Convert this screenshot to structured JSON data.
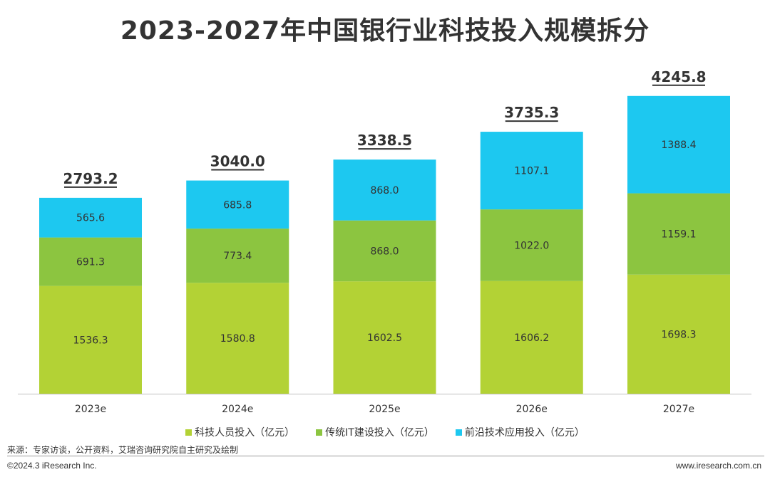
{
  "chart_data": {
    "type": "bar",
    "stacked": true,
    "title": "2023-2027年中国银行业科技投入规模拆分",
    "categories": [
      "2023e",
      "2024e",
      "2025e",
      "2026e",
      "2027e"
    ],
    "series": [
      {
        "name": "科技人员投入（亿元）",
        "color": "#b3d235",
        "values": [
          1536.3,
          1580.8,
          1602.5,
          1606.2,
          1698.3
        ]
      },
      {
        "name": "传统IT建设投入（亿元）",
        "color": "#8cc540",
        "values": [
          691.3,
          773.4,
          868.0,
          1022.0,
          1159.1
        ]
      },
      {
        "name": "前沿技术应用投入（亿元）",
        "color": "#1dc8f0",
        "values": [
          565.6,
          685.8,
          868.0,
          1107.1,
          1388.4
        ]
      }
    ],
    "totals": [
      "2793.2",
      "3040.0",
      "3338.5",
      "3735.3",
      "4245.8"
    ],
    "value_labels": [
      [
        "1536.3",
        "1580.8",
        "1602.5",
        "1606.2",
        "1698.3"
      ],
      [
        "691.3",
        "773.4",
        "868.0",
        "1022.0",
        "1159.1"
      ],
      [
        "565.6",
        "685.8",
        "868.0",
        "1107.1",
        "1388.4"
      ]
    ],
    "ylim": [
      0,
      4700
    ],
    "grid": false,
    "legend_position": "bottom"
  },
  "footer": {
    "source": "来源：专家访谈，公开资料，艾瑞咨询研究院自主研究及绘制",
    "copyright": "©2024.3 iResearch Inc.",
    "website": "www.iresearch.com.cn"
  }
}
